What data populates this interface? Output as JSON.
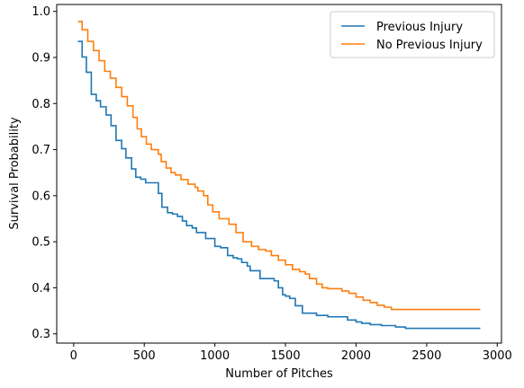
{
  "chart_data": {
    "type": "line",
    "title": "",
    "xlabel": "Number of Pitches",
    "ylabel": "Survival Probability",
    "xlim": [
      -120,
      3030
    ],
    "ylim": [
      0.28,
      1.015
    ],
    "xticks": [
      0,
      500,
      1000,
      1500,
      2000,
      2500,
      3000
    ],
    "yticks": [
      0.3,
      0.4,
      0.5,
      0.6,
      0.7,
      0.8,
      0.9,
      1.0
    ],
    "xtick_labels": [
      "0",
      "500",
      "1000",
      "1500",
      "2000",
      "2500",
      "3000"
    ],
    "ytick_labels": [
      "0.3",
      "0.4",
      "0.5",
      "0.6",
      "0.7",
      "0.8",
      "0.9",
      "1.0"
    ],
    "grid": false,
    "legend_position": "top-right",
    "step": "post",
    "series": [
      {
        "name": "Previous Injury",
        "color": "#1f77b4",
        "x": [
          30,
          60,
          90,
          125,
          160,
          190,
          230,
          265,
          300,
          340,
          370,
          410,
          440,
          475,
          510,
          600,
          625,
          665,
          700,
          735,
          770,
          800,
          840,
          870,
          935,
          1000,
          1040,
          1090,
          1130,
          1160,
          1190,
          1230,
          1250,
          1320,
          1420,
          1450,
          1480,
          1500,
          1530,
          1570,
          1620,
          1720,
          1800,
          1940,
          2000,
          2040,
          2100,
          2180,
          2280,
          2350,
          2880
        ],
        "y": [
          0.935,
          0.901,
          0.868,
          0.82,
          0.806,
          0.793,
          0.775,
          0.752,
          0.72,
          0.702,
          0.682,
          0.658,
          0.64,
          0.636,
          0.628,
          0.605,
          0.575,
          0.563,
          0.56,
          0.555,
          0.545,
          0.535,
          0.53,
          0.52,
          0.507,
          0.49,
          0.487,
          0.47,
          0.465,
          0.463,
          0.455,
          0.447,
          0.437,
          0.42,
          0.415,
          0.4,
          0.385,
          0.382,
          0.377,
          0.361,
          0.345,
          0.34,
          0.337,
          0.33,
          0.326,
          0.323,
          0.32,
          0.318,
          0.315,
          0.312,
          0.312
        ]
      },
      {
        "name": "No Previous Injury",
        "color": "#ff7f0e",
        "x": [
          30,
          60,
          100,
          140,
          180,
          220,
          260,
          300,
          340,
          380,
          420,
          450,
          480,
          515,
          550,
          600,
          620,
          655,
          690,
          720,
          760,
          810,
          860,
          880,
          920,
          950,
          985,
          1030,
          1100,
          1150,
          1200,
          1260,
          1310,
          1360,
          1400,
          1450,
          1500,
          1550,
          1600,
          1640,
          1670,
          1720,
          1760,
          1800,
          1900,
          1950,
          2000,
          2050,
          2100,
          2150,
          2200,
          2250,
          2300,
          2340,
          2880
        ],
        "y": [
          0.978,
          0.96,
          0.935,
          0.915,
          0.893,
          0.87,
          0.855,
          0.835,
          0.815,
          0.795,
          0.77,
          0.745,
          0.728,
          0.712,
          0.7,
          0.69,
          0.674,
          0.66,
          0.65,
          0.645,
          0.635,
          0.625,
          0.618,
          0.61,
          0.6,
          0.58,
          0.565,
          0.55,
          0.538,
          0.52,
          0.5,
          0.49,
          0.483,
          0.48,
          0.47,
          0.46,
          0.45,
          0.44,
          0.435,
          0.43,
          0.42,
          0.408,
          0.4,
          0.398,
          0.393,
          0.388,
          0.38,
          0.373,
          0.368,
          0.362,
          0.358,
          0.353,
          0.353,
          0.353,
          0.353
        ]
      }
    ]
  }
}
